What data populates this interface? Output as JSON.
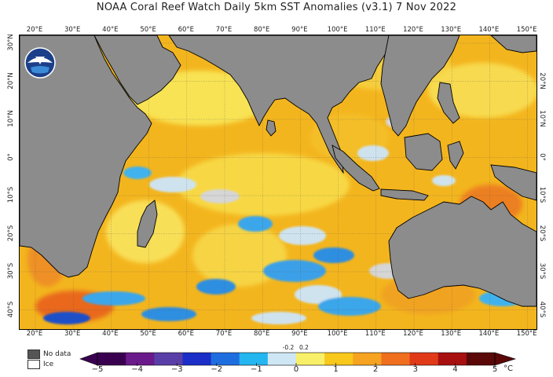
{
  "title": "NOAA Coral Reef Watch Daily 5km SST Anomalies  (v3.1)   7 Nov 2022",
  "longitude_ticks": [
    "20°E",
    "30°E",
    "40°E",
    "50°E",
    "60°E",
    "70°E",
    "80°E",
    "90°E",
    "100°E",
    "110°E",
    "120°E",
    "130°E",
    "140°E",
    "150°E"
  ],
  "latitude_ticks_left": [
    "30°N",
    "20°N",
    "10°N",
    "0°",
    "10°S",
    "20°S",
    "30°S",
    "40°S"
  ],
  "latitude_ticks_right": [
    "20°N",
    "10°N",
    "0°",
    "10°S",
    "20°S",
    "30°S",
    "40°S"
  ],
  "legend": {
    "no_data": "No data",
    "ice": "Ice"
  },
  "colorbar": {
    "ticks": [
      "−5",
      "−4",
      "−3",
      "−2",
      "−1",
      "0",
      "1",
      "2",
      "3",
      "4",
      "5"
    ],
    "minor_ticks": [
      "-0.2",
      "0.2"
    ],
    "unit": "°C",
    "colors": [
      "#3a0050",
      "#6a1a8a",
      "#5a3ea8",
      "#1b2fc8",
      "#1f6ee0",
      "#24b6f0",
      "#cfe7f4",
      "#f9f06a",
      "#f8c81c",
      "#f5a320",
      "#ef6f1e",
      "#e03a18",
      "#a81010",
      "#5a0808"
    ]
  },
  "colors": {
    "land": "#8c8c8c",
    "warm": "#f2b41c",
    "cool": "#3aa0e8",
    "neutral": "#d6d6d6"
  }
}
